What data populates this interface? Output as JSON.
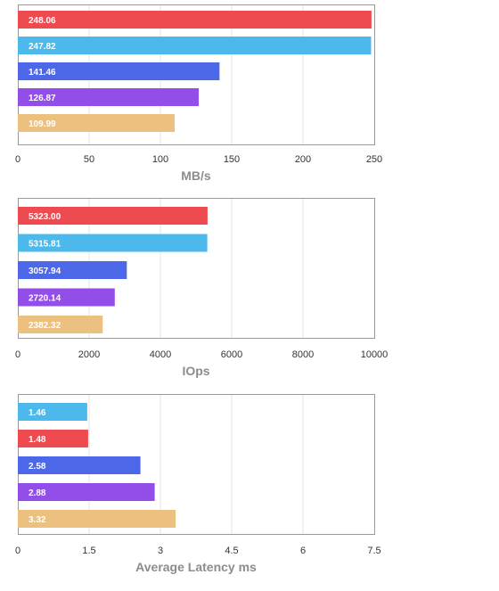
{
  "colors": {
    "red": "#ee4b51",
    "sky": "#4db8ec",
    "blue": "#4c68e9",
    "purple": "#934ee9",
    "tan": "#ecc17f",
    "grid": "#e6e6e6",
    "frame": "#999999"
  },
  "chart_data": [
    {
      "type": "bar",
      "orientation": "horizontal",
      "xlabel": "MB/s",
      "xlim": [
        0,
        250
      ],
      "ticks": [
        "0",
        "50",
        "100",
        "150",
        "200",
        "250"
      ],
      "grid": true,
      "bars": [
        {
          "value": 248.06,
          "label": "248.06",
          "color": "#ee4b51"
        },
        {
          "value": 247.82,
          "label": "247.82",
          "color": "#4db8ec"
        },
        {
          "value": 141.46,
          "label": "141.46",
          "color": "#4c68e9"
        },
        {
          "value": 126.87,
          "label": "126.87",
          "color": "#934ee9"
        },
        {
          "value": 109.99,
          "label": "109.99",
          "color": "#ecc17f"
        }
      ]
    },
    {
      "type": "bar",
      "orientation": "horizontal",
      "xlabel": "IOps",
      "xlim": [
        0,
        10000
      ],
      "ticks": [
        "0",
        "2000",
        "4000",
        "6000",
        "8000",
        "10000"
      ],
      "grid": true,
      "bars": [
        {
          "value": 5323.0,
          "label": "5323.00",
          "color": "#ee4b51"
        },
        {
          "value": 5315.81,
          "label": "5315.81",
          "color": "#4db8ec"
        },
        {
          "value": 3057.94,
          "label": "3057.94",
          "color": "#4c68e9"
        },
        {
          "value": 2720.14,
          "label": "2720.14",
          "color": "#934ee9"
        },
        {
          "value": 2382.32,
          "label": "2382.32",
          "color": "#ecc17f"
        }
      ]
    },
    {
      "type": "bar",
      "orientation": "horizontal",
      "xlabel": "Average Latency ms",
      "xlim": [
        0,
        7.5
      ],
      "ticks": [
        "0",
        "1.5",
        "3",
        "4.5",
        "6",
        "7.5"
      ],
      "grid": true,
      "bars": [
        {
          "value": 1.46,
          "label": "1.46",
          "color": "#4db8ec"
        },
        {
          "value": 1.48,
          "label": "1.48",
          "color": "#ee4b51"
        },
        {
          "value": 2.58,
          "label": "2.58",
          "color": "#4c68e9"
        },
        {
          "value": 2.88,
          "label": "2.88",
          "color": "#934ee9"
        },
        {
          "value": 3.32,
          "label": "3.32",
          "color": "#ecc17f"
        }
      ]
    }
  ]
}
